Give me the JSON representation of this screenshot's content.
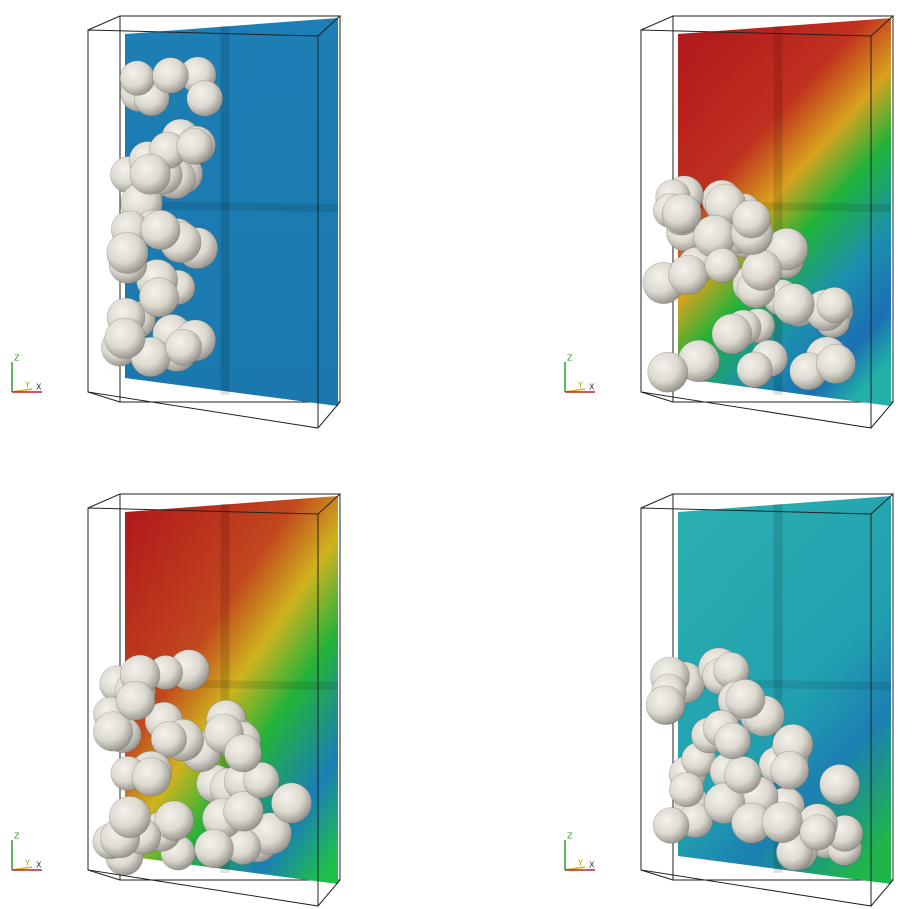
{
  "panels": [
    {
      "axes": {
        "z": "Z",
        "y": "Y",
        "x": "X"
      }
    },
    {
      "axes": {
        "z": "Z",
        "y": "Y",
        "x": "X"
      }
    },
    {
      "axes": {
        "z": "Z",
        "y": "Y",
        "x": "X"
      }
    },
    {
      "axes": {
        "z": "Z",
        "y": "Y",
        "x": "X"
      }
    }
  ]
}
